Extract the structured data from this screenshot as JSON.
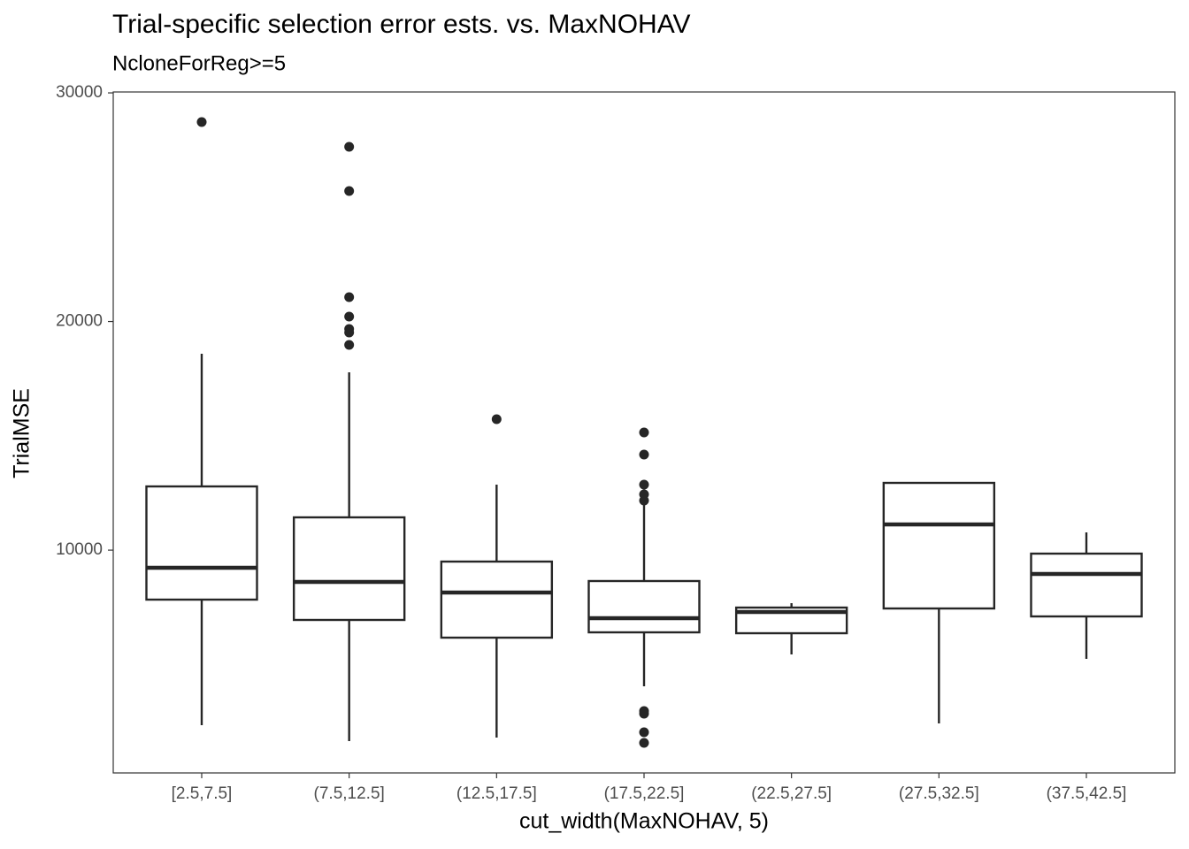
{
  "chart_data": {
    "type": "box",
    "title": "Trial-specific selection error ests. vs. MaxNOHAV",
    "subtitle": "NcloneForReg>=5",
    "x_label": "cut_width(MaxNOHAV, 5)",
    "y_label": "TrialMSE",
    "categories": [
      "[2.5,7.5]",
      "(7.5,12.5]",
      "(12.5,17.5]",
      "(17.5,22.5]",
      "(22.5,27.5]",
      "(27.5,32.5]",
      "(37.5,42.5]"
    ],
    "whisker_low": [
      2344,
      1648,
      1802,
      4045,
      5438,
      2421,
      5245
    ],
    "q1": [
      7836,
      6947,
      6173,
      6405,
      6366,
      7449,
      7101
    ],
    "median": [
      9229,
      8610,
      8146,
      7024,
      7294,
      11124,
      8958
    ],
    "q3": [
      12787,
      11434,
      9500,
      8649,
      7488,
      12942,
      9848
    ],
    "whisker_high": [
      18589,
      17777,
      12865,
      12169,
      7681,
      12942,
      10776
    ],
    "outliers": [
      [
        28724
      ],
      [
        27640,
        25706,
        21065,
        20214,
        19672,
        19517,
        18976
      ],
      [
        15727
      ],
      [
        15147,
        14180,
        12865,
        12440,
        12169,
        2963,
        2847,
        2034,
        1570
      ],
      [],
      [],
      []
    ],
    "color": "#262626",
    "ylim": [
      255,
      30040
    ],
    "yticks": [
      10000,
      20000,
      30000
    ],
    "grid": false
  }
}
